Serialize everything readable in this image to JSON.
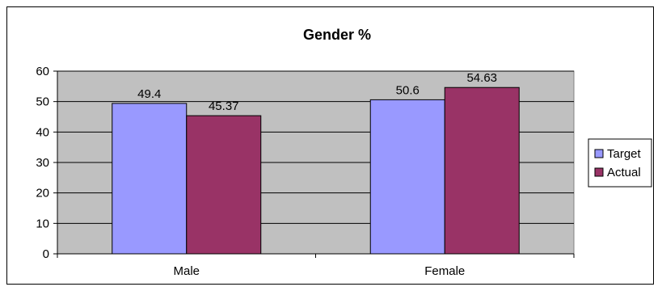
{
  "chart_data": {
    "type": "bar",
    "title": "Gender %",
    "xlabel": "",
    "ylabel": "",
    "categories": [
      "Male",
      "Female"
    ],
    "series": [
      {
        "name": "Target",
        "values": [
          49.4,
          50.6
        ],
        "labels": [
          "49.4",
          "50.6"
        ],
        "color": "#9999ff"
      },
      {
        "name": "Actual",
        "values": [
          45.37,
          54.63
        ],
        "labels": [
          "45.37",
          "54.63"
        ],
        "color": "#993366"
      }
    ],
    "ylim": [
      0,
      60
    ],
    "yticks": [
      0,
      10,
      20,
      30,
      40,
      50,
      60
    ],
    "grid": true,
    "plot_background": "#c0c0c0",
    "legend_position": "right"
  }
}
